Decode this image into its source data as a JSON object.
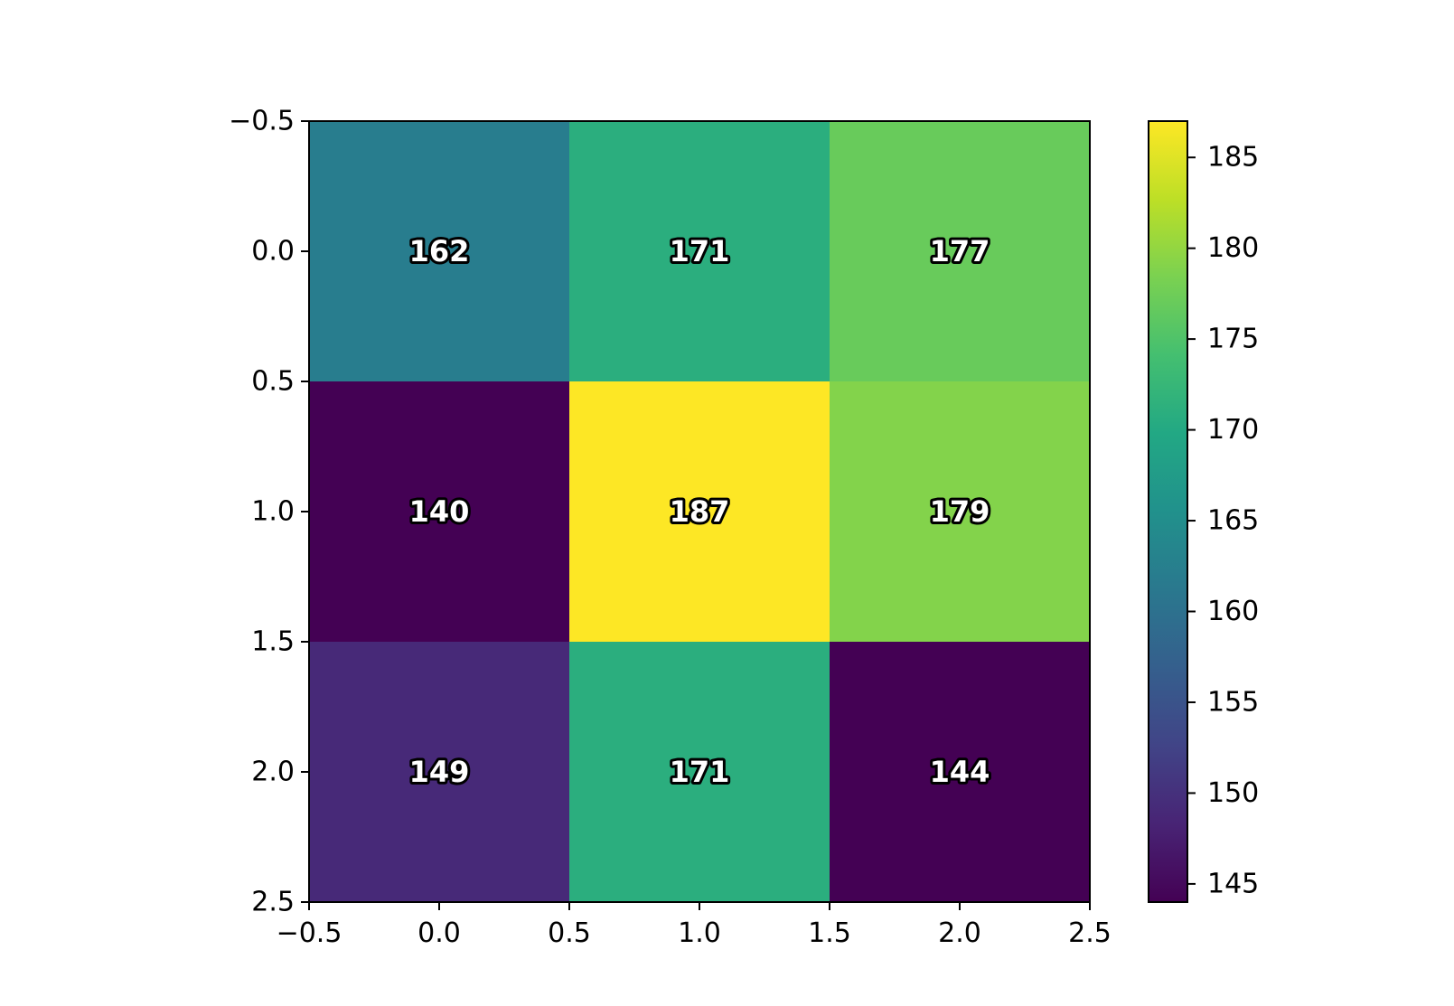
{
  "chart_data": {
    "type": "heatmap",
    "title": "",
    "xlabel": "",
    "ylabel": "",
    "colormap": "viridis",
    "rows": 3,
    "cols": 3,
    "values": [
      [
        162,
        171,
        177
      ],
      [
        140,
        187,
        179
      ],
      [
        149,
        171,
        144
      ]
    ],
    "xlim": [
      -0.5,
      2.5
    ],
    "ylim": [
      2.5,
      -0.5
    ],
    "x_ticks": [
      "−0.5",
      "0.0",
      "0.5",
      "1.0",
      "1.5",
      "2.0",
      "2.5"
    ],
    "y_ticks": [
      "−0.5",
      "0.0",
      "0.5",
      "1.0",
      "1.5",
      "2.0",
      "2.5"
    ],
    "colorbar": {
      "range": [
        144,
        187
      ],
      "ticks": [
        145,
        150,
        155,
        160,
        165,
        170,
        175,
        180,
        185
      ],
      "tick_labels": [
        "145",
        "150",
        "155",
        "160",
        "165",
        "170",
        "175",
        "180",
        "185"
      ]
    },
    "grid": false,
    "legend": "none"
  }
}
